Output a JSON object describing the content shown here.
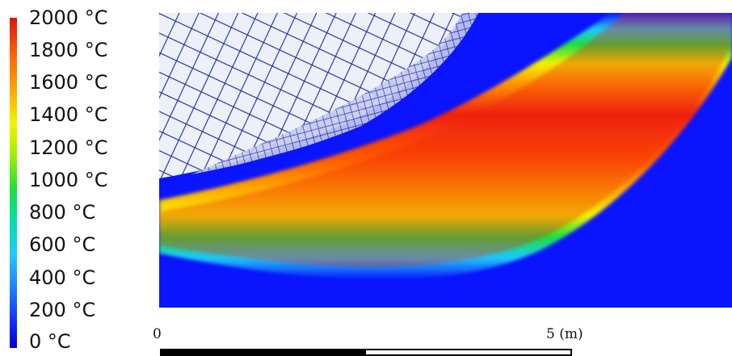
{
  "colorbar": {
    "ticks": [
      "2000 °C",
      "1800 °C",
      "1600 °C",
      "1400 °C",
      "1200 °C",
      "1000 °C",
      "800 °C",
      "600 °C",
      "400 °C",
      "200 °C",
      "0 °C"
    ],
    "colors": [
      "#e01010",
      "#ff6a00",
      "#ffa800",
      "#f4f200",
      "#9cf000",
      "#18e040",
      "#00e0b0",
      "#20c8ff",
      "#2080ff",
      "#1030ff",
      "#0000d8"
    ]
  },
  "plot": {
    "background_color": "#0a14ff",
    "mesh_color": "#1a2aa0"
  },
  "scale": {
    "start_label": "0",
    "end_label": "5 (m)"
  }
}
